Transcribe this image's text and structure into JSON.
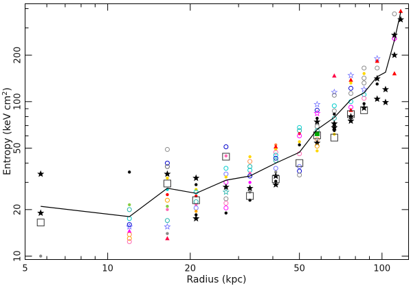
{
  "chart_data": {
    "type": "scatter",
    "xlabel": "Radius (kpc)",
    "ylabel": "Entropy (keV cm",
    "ylabel_sup": "2",
    "ylabel_close": ")",
    "x_scale": "log",
    "y_scale": "log",
    "xlim": [
      5,
      125
    ],
    "ylim": [
      9.5,
      430
    ],
    "x_ticks_major": [
      5,
      10,
      20,
      50,
      100
    ],
    "x_tick_labels": [
      "5",
      "10",
      "20",
      "50",
      "100"
    ],
    "x_ticks_minor": [
      6,
      7,
      8,
      9,
      30,
      40,
      60,
      70,
      80,
      90
    ],
    "y_ticks_major": [
      10,
      20,
      50,
      100,
      200
    ],
    "y_tick_labels": [
      "10",
      "20",
      "50",
      "100",
      "200"
    ],
    "y_ticks_minor": [
      30,
      40,
      60,
      70,
      80,
      90,
      300,
      400
    ],
    "grid": false,
    "mean_profile": {
      "x": [
        5.7,
        12,
        16.5,
        21,
        27,
        33,
        41,
        50,
        58,
        67,
        77,
        86,
        96,
        103,
        111,
        117
      ],
      "y": [
        21,
        18,
        27.5,
        25.5,
        31,
        33,
        40,
        47,
        66,
        79,
        103,
        114,
        145,
        155,
        250,
        380
      ]
    },
    "binned_boxes": {
      "x": [
        5.7,
        16.5,
        21,
        27,
        33,
        41,
        50,
        58,
        67,
        77,
        86
      ],
      "y": [
        16.5,
        29.5,
        23,
        44,
        24.5,
        31.5,
        40,
        60.5,
        58.5,
        83,
        88
      ]
    },
    "scatter_points": [
      {
        "x": 5.7,
        "y": 34,
        "color": "#000000",
        "marker": "star"
      },
      {
        "x": 5.7,
        "y": 19,
        "color": "#000000",
        "marker": "star"
      },
      {
        "x": 5.7,
        "y": 10,
        "color": "#888888",
        "marker": "dot"
      },
      {
        "x": 12,
        "y": 35,
        "color": "#000000",
        "marker": "dot"
      },
      {
        "x": 12,
        "y": 21.5,
        "color": "#88cc44",
        "marker": "dot"
      },
      {
        "x": 12,
        "y": 20,
        "color": "#20b2aa",
        "marker": "circle"
      },
      {
        "x": 12,
        "y": 17.5,
        "color": "#00cccc",
        "marker": "circle"
      },
      {
        "x": 12,
        "y": 16,
        "color": "#0000cc",
        "marker": "circle"
      },
      {
        "x": 12,
        "y": 15.5,
        "color": "#7070ff",
        "marker": "star"
      },
      {
        "x": 12,
        "y": 14.5,
        "color": "#ff00ff",
        "marker": "triangle"
      },
      {
        "x": 12,
        "y": 13.8,
        "color": "#ff8844",
        "marker": "circle"
      },
      {
        "x": 12,
        "y": 13,
        "color": "#ffa500",
        "marker": "circle"
      },
      {
        "x": 12,
        "y": 12.4,
        "color": "#ff69b4",
        "marker": "circle"
      },
      {
        "x": 16.5,
        "y": 49,
        "color": "#888888",
        "marker": "circle"
      },
      {
        "x": 16.5,
        "y": 40,
        "color": "#0000cc",
        "marker": "circle"
      },
      {
        "x": 16.5,
        "y": 38,
        "color": "#666666",
        "marker": "circle"
      },
      {
        "x": 16.5,
        "y": 34,
        "color": "#000000",
        "marker": "star"
      },
      {
        "x": 16.5,
        "y": 32,
        "color": "#ffd700",
        "marker": "dot"
      },
      {
        "x": 16.5,
        "y": 27,
        "color": "#00cccc",
        "marker": "dot"
      },
      {
        "x": 16.5,
        "y": 25,
        "color": "#ff0000",
        "marker": "dot"
      },
      {
        "x": 16.5,
        "y": 23,
        "color": "#ffa500",
        "marker": "circle"
      },
      {
        "x": 16.5,
        "y": 21,
        "color": "#88cc44",
        "marker": "dot"
      },
      {
        "x": 16.5,
        "y": 20,
        "color": "#ff69b4",
        "marker": "dot"
      },
      {
        "x": 16.5,
        "y": 17,
        "color": "#20b2aa",
        "marker": "circle"
      },
      {
        "x": 16.5,
        "y": 15.5,
        "color": "#7070ff",
        "marker": "star"
      },
      {
        "x": 16.5,
        "y": 14,
        "color": "#888888",
        "marker": "dot"
      },
      {
        "x": 16.5,
        "y": 13,
        "color": "#ff0044",
        "marker": "triangle"
      },
      {
        "x": 21,
        "y": 32,
        "color": "#000000",
        "marker": "star"
      },
      {
        "x": 21,
        "y": 29,
        "color": "#000000",
        "marker": "dot"
      },
      {
        "x": 21,
        "y": 27,
        "color": "#ffd700",
        "marker": "dot"
      },
      {
        "x": 21,
        "y": 26,
        "color": "#00cccc",
        "marker": "circle"
      },
      {
        "x": 21,
        "y": 24.5,
        "color": "#ff0000",
        "marker": "dot"
      },
      {
        "x": 21,
        "y": 22.5,
        "color": "#20b2aa",
        "marker": "circle"
      },
      {
        "x": 21,
        "y": 21.5,
        "color": "#ff69b4",
        "marker": "dot"
      },
      {
        "x": 21,
        "y": 20.5,
        "color": "#7070ff",
        "marker": "circle"
      },
      {
        "x": 21,
        "y": 19.5,
        "color": "#ffa500",
        "marker": "dot"
      },
      {
        "x": 21,
        "y": 18.5,
        "color": "#000000",
        "marker": "dot"
      },
      {
        "x": 21,
        "y": 17.5,
        "color": "#000000",
        "marker": "star"
      },
      {
        "x": 27,
        "y": 51,
        "color": "#0000cc",
        "marker": "circle"
      },
      {
        "x": 27,
        "y": 44.5,
        "color": "#ff69b4",
        "marker": "dot"
      },
      {
        "x": 27,
        "y": 37,
        "color": "#00cccc",
        "marker": "circle"
      },
      {
        "x": 27,
        "y": 34,
        "color": "#7070ff",
        "marker": "circle"
      },
      {
        "x": 27,
        "y": 32.5,
        "color": "#ffd700",
        "marker": "dot"
      },
      {
        "x": 27,
        "y": 30,
        "color": "#ff00ff",
        "marker": "circle"
      },
      {
        "x": 27,
        "y": 28,
        "color": "#000000",
        "marker": "star"
      },
      {
        "x": 27,
        "y": 26,
        "color": "#20b2aa",
        "marker": "star"
      },
      {
        "x": 27,
        "y": 23.5,
        "color": "#888888",
        "marker": "circle"
      },
      {
        "x": 27,
        "y": 22,
        "color": "#ff69b4",
        "marker": "circle"
      },
      {
        "x": 27,
        "y": 20.5,
        "color": "#ff00ff",
        "marker": "circle"
      },
      {
        "x": 27,
        "y": 19,
        "color": "#000000",
        "marker": "dot"
      },
      {
        "x": 33,
        "y": 44,
        "color": "#ffd700",
        "marker": "dot"
      },
      {
        "x": 33,
        "y": 41,
        "color": "#ff8844",
        "marker": "circle"
      },
      {
        "x": 33,
        "y": 38,
        "color": "#20b2aa",
        "marker": "circle"
      },
      {
        "x": 33,
        "y": 36,
        "color": "#00cccc",
        "marker": "circle"
      },
      {
        "x": 33,
        "y": 34.5,
        "color": "#ff69b4",
        "marker": "dot"
      },
      {
        "x": 33,
        "y": 33,
        "color": "#0000cc",
        "marker": "circle"
      },
      {
        "x": 33,
        "y": 30,
        "color": "#ff00ff",
        "marker": "dot"
      },
      {
        "x": 33,
        "y": 27.5,
        "color": "#000000",
        "marker": "star"
      },
      {
        "x": 33,
        "y": 26,
        "color": "#888888",
        "marker": "dot"
      },
      {
        "x": 33,
        "y": 23,
        "color": "#000000",
        "marker": "dot"
      },
      {
        "x": 41,
        "y": 52.5,
        "color": "#ff8844",
        "marker": "dot"
      },
      {
        "x": 41,
        "y": 51,
        "color": "#ff0000",
        "marker": "triangle"
      },
      {
        "x": 41,
        "y": 49,
        "color": "#ffd700",
        "marker": "dot"
      },
      {
        "x": 41,
        "y": 47,
        "color": "#ff69b4",
        "marker": "circle"
      },
      {
        "x": 41,
        "y": 45,
        "color": "#00cccc",
        "marker": "circle"
      },
      {
        "x": 41,
        "y": 43,
        "color": "#0000cc",
        "marker": "circle"
      },
      {
        "x": 41,
        "y": 41.5,
        "color": "#20b2aa",
        "marker": "circle"
      },
      {
        "x": 41,
        "y": 37,
        "color": "#7070ff",
        "marker": "circle"
      },
      {
        "x": 41,
        "y": 35,
        "color": "#888888",
        "marker": "dot"
      },
      {
        "x": 41,
        "y": 33,
        "color": "#000000",
        "marker": "star"
      },
      {
        "x": 41,
        "y": 30.5,
        "color": "#000000",
        "marker": "dot"
      },
      {
        "x": 41,
        "y": 29,
        "color": "#000000",
        "marker": "star"
      },
      {
        "x": 50,
        "y": 68,
        "color": "#00cccc",
        "marker": "circle"
      },
      {
        "x": 50,
        "y": 65,
        "color": "#20b2aa",
        "marker": "circle"
      },
      {
        "x": 50,
        "y": 62,
        "color": "#ff0000",
        "marker": "dot"
      },
      {
        "x": 50,
        "y": 60,
        "color": "#ff00ff",
        "marker": "circle"
      },
      {
        "x": 50,
        "y": 55,
        "color": "#ffd700",
        "marker": "dot"
      },
      {
        "x": 50,
        "y": 52.5,
        "color": "#000000",
        "marker": "dot"
      },
      {
        "x": 50,
        "y": 46,
        "color": "#ff69b4",
        "marker": "circle"
      },
      {
        "x": 50,
        "y": 38,
        "color": "#7070ff",
        "marker": "circle"
      },
      {
        "x": 50,
        "y": 35.5,
        "color": "#0000cc",
        "marker": "circle"
      },
      {
        "x": 50,
        "y": 33.5,
        "color": "#888888",
        "marker": "circle"
      },
      {
        "x": 58,
        "y": 96,
        "color": "#7070ff",
        "marker": "star"
      },
      {
        "x": 58,
        "y": 88,
        "color": "#0000cc",
        "marker": "circle"
      },
      {
        "x": 58,
        "y": 84,
        "color": "#ff00ff",
        "marker": "star"
      },
      {
        "x": 58,
        "y": 78,
        "color": "#000000",
        "marker": "dot"
      },
      {
        "x": 58,
        "y": 74,
        "color": "#000000",
        "marker": "star"
      },
      {
        "x": 58,
        "y": 69,
        "color": "#888888",
        "marker": "circle"
      },
      {
        "x": 58,
        "y": 65,
        "color": "#20b2aa",
        "marker": "circle"
      },
      {
        "x": 58,
        "y": 62,
        "color": "#00aa00",
        "marker": "square"
      },
      {
        "x": 58,
        "y": 57,
        "color": "#ff8844",
        "marker": "circle"
      },
      {
        "x": 58,
        "y": 54,
        "color": "#000000",
        "marker": "star"
      },
      {
        "x": 58,
        "y": 51.5,
        "color": "#ffa500",
        "marker": "circle"
      },
      {
        "x": 58,
        "y": 48,
        "color": "#ffd700",
        "marker": "dot"
      },
      {
        "x": 67,
        "y": 147,
        "color": "#ff0044",
        "marker": "triangle"
      },
      {
        "x": 67,
        "y": 115,
        "color": "#7070ff",
        "marker": "star"
      },
      {
        "x": 67,
        "y": 110,
        "color": "#888888",
        "marker": "circle"
      },
      {
        "x": 67,
        "y": 94,
        "color": "#00cccc",
        "marker": "circle"
      },
      {
        "x": 67,
        "y": 87,
        "color": "#888888",
        "marker": "circle"
      },
      {
        "x": 67,
        "y": 83,
        "color": "#000000",
        "marker": "dot"
      },
      {
        "x": 67,
        "y": 78,
        "color": "#20b2aa",
        "marker": "circle"
      },
      {
        "x": 67,
        "y": 72,
        "color": "#000000",
        "marker": "star"
      },
      {
        "x": 67,
        "y": 68,
        "color": "#000000",
        "marker": "star"
      },
      {
        "x": 67,
        "y": 65,
        "color": "#000000",
        "marker": "dot"
      },
      {
        "x": 67,
        "y": 61.5,
        "color": "#ffd700",
        "marker": "dot"
      },
      {
        "x": 77,
        "y": 148,
        "color": "#7070ff",
        "marker": "star"
      },
      {
        "x": 77,
        "y": 138,
        "color": "#ff0000",
        "marker": "triangle"
      },
      {
        "x": 77,
        "y": 132,
        "color": "#ffd700",
        "marker": "dot"
      },
      {
        "x": 77,
        "y": 122,
        "color": "#0000cc",
        "marker": "circle"
      },
      {
        "x": 77,
        "y": 113,
        "color": "#888888",
        "marker": "circle"
      },
      {
        "x": 77,
        "y": 100,
        "color": "#00cccc",
        "marker": "circle"
      },
      {
        "x": 77,
        "y": 92,
        "color": "#ff00ff",
        "marker": "circle"
      },
      {
        "x": 77,
        "y": 88,
        "color": "#ff0000",
        "marker": "triangle"
      },
      {
        "x": 77,
        "y": 80,
        "color": "#000000",
        "marker": "star"
      },
      {
        "x": 77,
        "y": 75,
        "color": "#000000",
        "marker": "star"
      },
      {
        "x": 86,
        "y": 165,
        "color": "#888888",
        "marker": "circle"
      },
      {
        "x": 86,
        "y": 152,
        "color": "#ffd700",
        "marker": "dot"
      },
      {
        "x": 86,
        "y": 142,
        "color": "#888888",
        "marker": "circle"
      },
      {
        "x": 86,
        "y": 132,
        "color": "#888888",
        "marker": "circle"
      },
      {
        "x": 86,
        "y": 120,
        "color": "#7070ff",
        "marker": "star"
      },
      {
        "x": 86,
        "y": 111,
        "color": "#00cccc",
        "marker": "circle"
      },
      {
        "x": 86,
        "y": 105,
        "color": "#ff69b4",
        "marker": "circle"
      },
      {
        "x": 86,
        "y": 97,
        "color": "#000000",
        "marker": "dot"
      },
      {
        "x": 86,
        "y": 91,
        "color": "#000000",
        "marker": "star"
      },
      {
        "x": 96,
        "y": 190,
        "color": "#7070ff",
        "marker": "star"
      },
      {
        "x": 96,
        "y": 183,
        "color": "#ff0000",
        "marker": "triangle"
      },
      {
        "x": 96,
        "y": 165,
        "color": "#888888",
        "marker": "circle"
      },
      {
        "x": 96,
        "y": 141,
        "color": "#000000",
        "marker": "star"
      },
      {
        "x": 96,
        "y": 130,
        "color": "#000000",
        "marker": "dot"
      },
      {
        "x": 96,
        "y": 104,
        "color": "#000000",
        "marker": "star"
      },
      {
        "x": 103,
        "y": 120,
        "color": "#000000",
        "marker": "star"
      },
      {
        "x": 103,
        "y": 99,
        "color": "#000000",
        "marker": "star"
      },
      {
        "x": 111,
        "y": 370,
        "color": "#888888",
        "marker": "circle"
      },
      {
        "x": 111,
        "y": 255,
        "color": "#ff00ff",
        "marker": "diamond"
      },
      {
        "x": 111,
        "y": 270,
        "color": "#000000",
        "marker": "star"
      },
      {
        "x": 111,
        "y": 200,
        "color": "#000000",
        "marker": "star"
      },
      {
        "x": 111,
        "y": 152,
        "color": "#ff0000",
        "marker": "triangle"
      },
      {
        "x": 117,
        "y": 385,
        "color": "#ff0000",
        "marker": "triangle"
      },
      {
        "x": 117,
        "y": 340,
        "color": "#000000",
        "marker": "star"
      }
    ]
  }
}
